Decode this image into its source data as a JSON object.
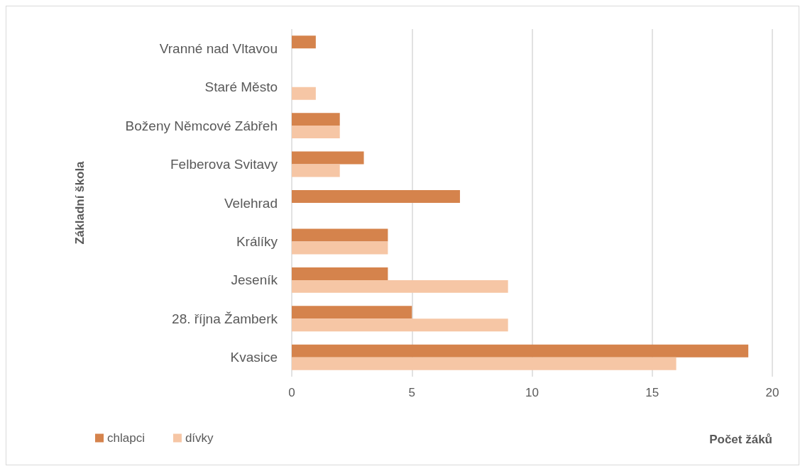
{
  "chart_data": {
    "type": "bar",
    "orientation": "horizontal",
    "xlabel": "Počet žáků",
    "ylabel": "Základní škola",
    "categories": [
      "Vranné nad Vltavou",
      "Staré Město",
      "Boženy Němcové Zábřeh",
      "Felberova Svitavy",
      "Velehrad",
      "Králíky",
      "Jeseník",
      "28. října Žamberk",
      "Kvasice"
    ],
    "series": [
      {
        "name": "chlapci",
        "color": "#d5834c",
        "values": [
          1,
          null,
          2,
          3,
          7,
          4,
          4,
          5,
          19
        ]
      },
      {
        "name": "dívky",
        "color": "#f6c6a5",
        "values": [
          null,
          1,
          2,
          2,
          null,
          4,
          9,
          9,
          16
        ]
      }
    ],
    "xlim": [
      0,
      20
    ],
    "xticks": [
      0,
      5,
      10,
      15,
      20
    ],
    "grid": "x",
    "legend": "bottom left"
  }
}
